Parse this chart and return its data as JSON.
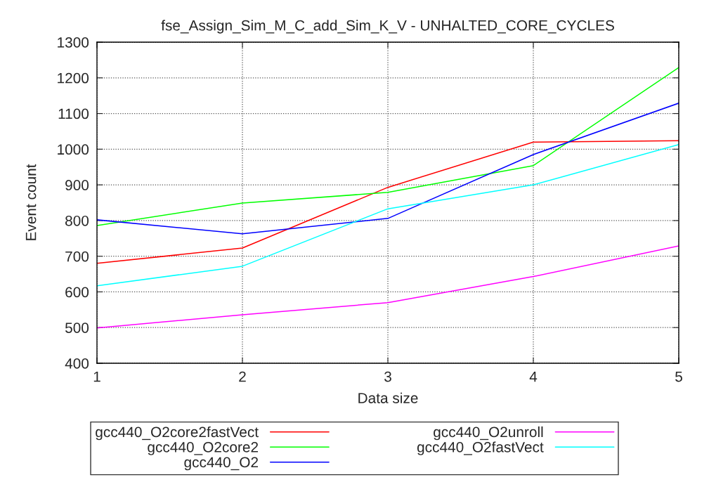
{
  "chart_data": {
    "type": "line",
    "title": "fse_Assign_Sim_M_C_add_Sim_K_V - UNHALTED_CORE_CYCLES",
    "xlabel": "Data size",
    "ylabel": "Event count",
    "x": [
      1,
      2,
      3,
      4,
      5
    ],
    "series": [
      {
        "name": "gcc440_O2core2fastVect",
        "color": "#ff0000",
        "values": [
          680,
          723,
          893,
          1020,
          1024
        ]
      },
      {
        "name": "gcc440_O2core2",
        "color": "#00ff00",
        "values": [
          786,
          849,
          879,
          954,
          1229
        ]
      },
      {
        "name": "gcc440_O2",
        "color": "#0000ff",
        "values": [
          802,
          763,
          806,
          985,
          1129
        ]
      },
      {
        "name": "gcc440_O2unroll",
        "color": "#ff00ff",
        "values": [
          499,
          536,
          570,
          643,
          729
        ]
      },
      {
        "name": "gcc440_O2fastVect",
        "color": "#00ffff",
        "values": [
          617,
          672,
          833,
          900,
          1013
        ]
      }
    ],
    "xlim": [
      1,
      5
    ],
    "xticks": [
      1,
      2,
      3,
      4,
      5
    ],
    "ylim": [
      400,
      1300
    ],
    "yticks": [
      400,
      500,
      600,
      700,
      800,
      900,
      1000,
      1100,
      1200,
      1300
    ],
    "grid": true,
    "legend": "bottom",
    "line_style": "solid",
    "marker": "none"
  }
}
